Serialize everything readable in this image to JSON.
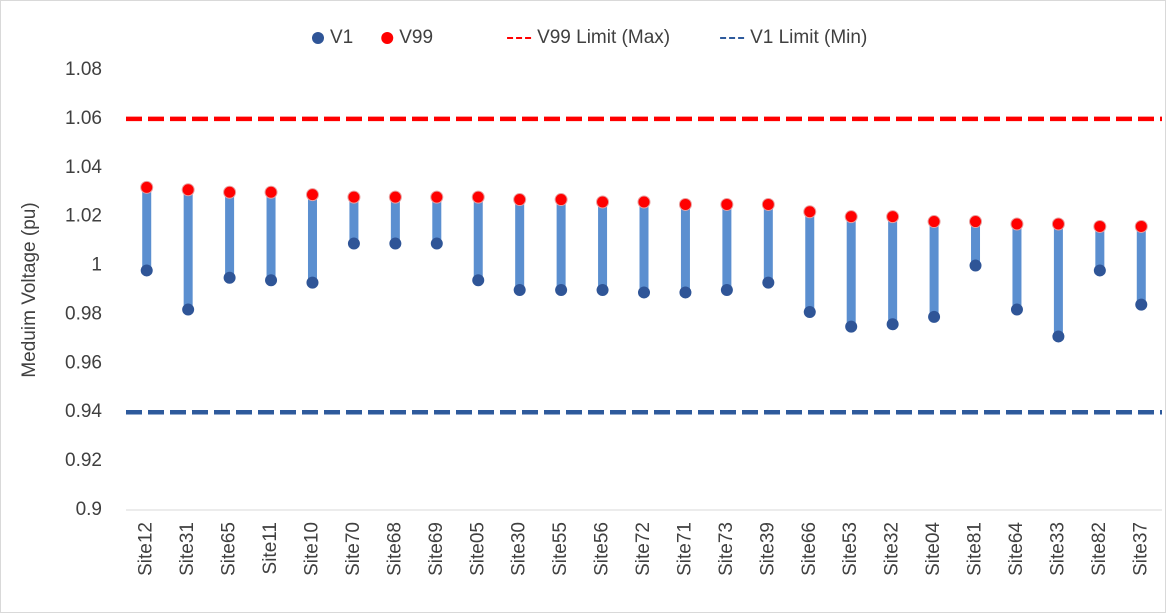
{
  "chart_data": {
    "type": "range-dot",
    "y_axis_label": "Meduim Voltage (pu)",
    "categories": [
      "Site12",
      "Site31",
      "Site65",
      "Site11",
      "Site10",
      "Site70",
      "Site68",
      "Site69",
      "Site05",
      "Site30",
      "Site55",
      "Site56",
      "Site72",
      "Site71",
      "Site73",
      "Site39",
      "Site66",
      "Site53",
      "Site32",
      "Site04",
      "Site81",
      "Site64",
      "Site33",
      "Site82",
      "Site37"
    ],
    "series": [
      {
        "name": "V1",
        "color": "#2f5597",
        "values": [
          0.998,
          0.982,
          0.995,
          0.994,
          0.993,
          1.009,
          1.009,
          1.009,
          0.994,
          0.99,
          0.99,
          0.99,
          0.989,
          0.989,
          0.99,
          0.993,
          0.981,
          0.975,
          0.976,
          0.979,
          1.0,
          0.982,
          0.971,
          0.998,
          0.984
        ]
      },
      {
        "name": "V99",
        "color": "#ff0000",
        "values": [
          1.032,
          1.031,
          1.03,
          1.03,
          1.029,
          1.028,
          1.028,
          1.028,
          1.028,
          1.027,
          1.027,
          1.026,
          1.026,
          1.025,
          1.025,
          1.025,
          1.022,
          1.02,
          1.02,
          1.018,
          1.018,
          1.017,
          1.017,
          1.016,
          1.016
        ]
      }
    ],
    "stem_color": "#5b8fd0",
    "limits": [
      {
        "name": "V99 Limit (Max)",
        "color": "#ff0000",
        "value": 1.06
      },
      {
        "name": "V1 Limit (Min)",
        "color": "#2e5a9c",
        "value": 0.94
      }
    ],
    "ylim": [
      0.9,
      1.08
    ],
    "yticks": [
      0.9,
      0.92,
      0.94,
      0.96,
      0.98,
      1,
      1.02,
      1.04,
      1.06,
      1.08
    ],
    "grid": false,
    "legend": "top"
  }
}
